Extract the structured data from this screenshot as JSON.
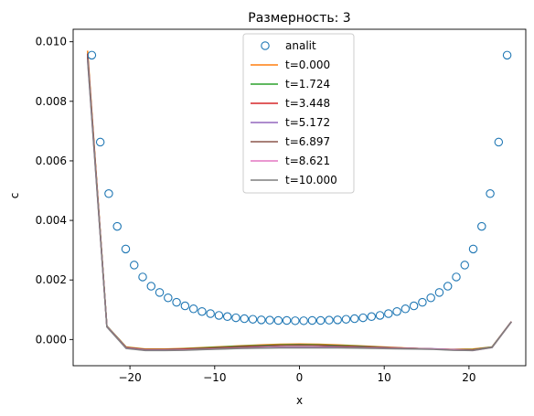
{
  "chart_data": {
    "type": "line",
    "title": "Размерность: 3",
    "xlabel": "x",
    "ylabel": "c",
    "xlim": [
      -26.7,
      26.7
    ],
    "ylim": [
      -0.00088,
      0.01042
    ],
    "xticks": [
      -20,
      -10,
      0,
      10,
      20
    ],
    "xtick_labels": [
      "−20",
      "−10",
      "0",
      "10",
      "20"
    ],
    "yticks": [
      0.0,
      0.002,
      0.004,
      0.006,
      0.008,
      0.01
    ],
    "ytick_labels": [
      "0.000",
      "0.002",
      "0.004",
      "0.006",
      "0.008",
      "0.010"
    ],
    "grid": false,
    "legend": "upper center",
    "analit": {
      "name": "analit",
      "color": "#1f77b4",
      "x": [
        -24.5,
        -23.5,
        -22.5,
        -21.5,
        -20.5,
        -19.5,
        -18.5,
        -17.5,
        -16.5,
        -15.5,
        -14.5,
        -13.5,
        -12.5,
        -11.5,
        -10.5,
        -9.5,
        -8.5,
        -7.5,
        -6.5,
        -5.5,
        -4.5,
        -3.5,
        -2.5,
        -1.5,
        -0.5,
        0.5,
        1.5,
        2.5,
        3.5,
        4.5,
        5.5,
        6.5,
        7.5,
        8.5,
        9.5,
        10.5,
        11.5,
        12.5,
        13.5,
        14.5,
        15.5,
        16.5,
        17.5,
        18.5,
        19.5,
        20.5,
        21.5,
        22.5,
        23.5,
        24.5
      ],
      "y": [
        0.00955,
        0.00663,
        0.0049,
        0.0038,
        0.00304,
        0.0025,
        0.0021,
        0.00179,
        0.00158,
        0.0014,
        0.00125,
        0.00113,
        0.00103,
        0.00094,
        0.00087,
        0.00081,
        0.00077,
        0.00073,
        0.0007,
        0.00068,
        0.00066,
        0.00065,
        0.00064,
        0.00064,
        0.00063,
        0.00063,
        0.00064,
        0.00064,
        0.00065,
        0.00066,
        0.00068,
        0.0007,
        0.00073,
        0.00077,
        0.00081,
        0.00087,
        0.00094,
        0.00103,
        0.00113,
        0.00125,
        0.0014,
        0.00158,
        0.00179,
        0.0021,
        0.0025,
        0.00304,
        0.0038,
        0.0049,
        0.00663,
        0.00955
      ]
    },
    "x": [
      -25,
      -22.72,
      -20.45,
      -18.18,
      -15.91,
      -13.64,
      -11.36,
      -9.09,
      -6.82,
      -4.55,
      -2.27,
      0,
      2.27,
      4.55,
      6.82,
      9.09,
      11.36,
      13.64,
      15.91,
      18.18,
      20.45,
      22.72,
      25
    ],
    "series": [
      {
        "name": "t=0.000",
        "color": "#ff7f0e",
        "y": [
          0.0097,
          0.00045,
          -0.00025,
          -0.00032,
          -0.00032,
          -0.0003,
          -0.00027,
          -0.00024,
          -0.00021,
          -0.00018,
          -0.00016,
          -0.00015,
          -0.00016,
          -0.00018,
          -0.00021,
          -0.00024,
          -0.00027,
          -0.0003,
          -0.00032,
          -0.00033,
          -0.00032,
          -0.00025,
          0.0006
        ]
      },
      {
        "name": "t=1.724",
        "color": "#2ca02c",
        "y": [
          0.0096,
          0.00045,
          -0.00026,
          -0.00033,
          -0.00033,
          -0.00031,
          -0.00028,
          -0.00025,
          -0.00022,
          -0.0002,
          -0.00018,
          -0.00017,
          -0.00018,
          -0.0002,
          -0.00022,
          -0.00025,
          -0.00028,
          -0.0003,
          -0.00032,
          -0.00034,
          -0.00034,
          -0.00025,
          0.0006
        ]
      },
      {
        "name": "t=3.448",
        "color": "#d62728",
        "y": [
          0.0096,
          0.00044,
          -0.00027,
          -0.00034,
          -0.00034,
          -0.00032,
          -0.0003,
          -0.00027,
          -0.00024,
          -0.00022,
          -0.0002,
          -0.00019,
          -0.0002,
          -0.00022,
          -0.00024,
          -0.00026,
          -0.00028,
          -0.0003,
          -0.00032,
          -0.00034,
          -0.00035,
          -0.00026,
          0.0006
        ]
      },
      {
        "name": "t=5.172",
        "color": "#9467bd",
        "y": [
          0.0095,
          0.00044,
          -0.00028,
          -0.00035,
          -0.00035,
          -0.00034,
          -0.00032,
          -0.0003,
          -0.00028,
          -0.00027,
          -0.00026,
          -0.00026,
          -0.00026,
          -0.00026,
          -0.00027,
          -0.00028,
          -0.00029,
          -0.0003,
          -0.00031,
          -0.00034,
          -0.00036,
          -0.00026,
          0.0006
        ]
      },
      {
        "name": "t=6.897",
        "color": "#8c564b",
        "y": [
          0.0095,
          0.00043,
          -0.00028,
          -0.00036,
          -0.00036,
          -0.00034,
          -0.00031,
          -0.00028,
          -0.00025,
          -0.00022,
          -0.0002,
          -0.0002,
          -0.0002,
          -0.00022,
          -0.00024,
          -0.00026,
          -0.00028,
          -0.0003,
          -0.00032,
          -0.00035,
          -0.00036,
          -0.00026,
          0.0006
        ]
      },
      {
        "name": "t=8.621",
        "color": "#e377c2",
        "y": [
          0.0094,
          0.00043,
          -0.00029,
          -0.00036,
          -0.00036,
          -0.00035,
          -0.00033,
          -0.00031,
          -0.00029,
          -0.00028,
          -0.00027,
          -0.00027,
          -0.00027,
          -0.00027,
          -0.00028,
          -0.00029,
          -0.0003,
          -0.00031,
          -0.00032,
          -0.00035,
          -0.00037,
          -0.00027,
          0.00059
        ]
      },
      {
        "name": "t=10.000",
        "color": "#7f7f7f",
        "y": [
          0.0094,
          0.00042,
          -0.0003,
          -0.00037,
          -0.00037,
          -0.00036,
          -0.00034,
          -0.00032,
          -0.0003,
          -0.00029,
          -0.00028,
          -0.00028,
          -0.00028,
          -0.00028,
          -0.00029,
          -0.0003,
          -0.00031,
          -0.00032,
          -0.00033,
          -0.00036,
          -0.00037,
          -0.00027,
          0.00059
        ]
      }
    ]
  }
}
